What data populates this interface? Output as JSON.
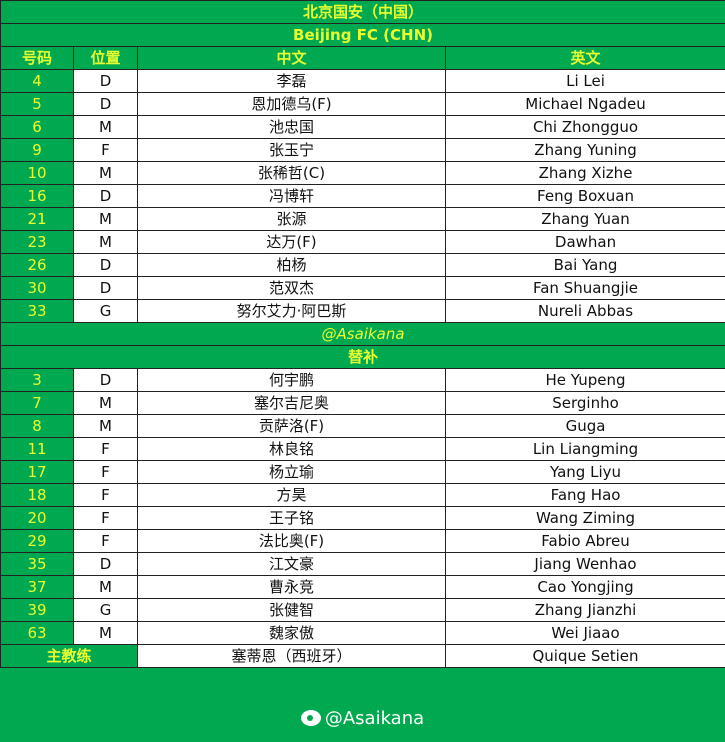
{
  "title_cn": "北京国安（中国）",
  "title_en": "Beijing FC (CHN)",
  "headers": [
    "号码",
    "位置",
    "中文",
    "英文"
  ],
  "starters": [
    [
      "4",
      "D",
      "李磊",
      "Li Lei"
    ],
    [
      "5",
      "D",
      "恩加德乌(F)",
      "Michael Ngadeu"
    ],
    [
      "6",
      "M",
      "池忠国",
      "Chi Zhongguo"
    ],
    [
      "9",
      "F",
      "张玉宁",
      "Zhang Yuning"
    ],
    [
      "10",
      "M",
      "张稀哲(C)",
      "Zhang Xizhe"
    ],
    [
      "16",
      "D",
      "冯博轩",
      "Feng Boxuan"
    ],
    [
      "21",
      "M",
      "张源",
      "Zhang Yuan"
    ],
    [
      "23",
      "M",
      "达万(F)",
      "Dawhan"
    ],
    [
      "26",
      "D",
      "柏杨",
      "Bai Yang"
    ],
    [
      "30",
      "D",
      "范双杰",
      "Fan Shuangjie"
    ],
    [
      "33",
      "G",
      "努尔艾力·阿巴斯",
      "Nureli Abbas"
    ]
  ],
  "watermark": "@Asaikana",
  "subs_label": "替补",
  "subs": [
    [
      "3",
      "D",
      "何宇鹏",
      "He Yupeng"
    ],
    [
      "7",
      "M",
      "塞尔吉尼奥",
      "Serginho"
    ],
    [
      "8",
      "M",
      "贡萨洛(F)",
      "Guga"
    ],
    [
      "11",
      "F",
      "林良铭",
      "Lin Liangming"
    ],
    [
      "17",
      "F",
      "杨立瑜",
      "Yang Liyu"
    ],
    [
      "18",
      "F",
      "方昊",
      "Fang Hao"
    ],
    [
      "20",
      "F",
      "王子铭",
      "Wang Ziming"
    ],
    [
      "29",
      "F",
      "法比奥(F)",
      "Fabio Abreu"
    ],
    [
      "35",
      "D",
      "江文豪",
      "Jiang Wenhao"
    ],
    [
      "37",
      "M",
      "曹永竞",
      "Cao Yongjing"
    ],
    [
      "39",
      "G",
      "张健智",
      "Zhang Jianzhi"
    ],
    [
      "63",
      "M",
      "魏家傲",
      "Wei Jiaao"
    ]
  ],
  "coach": {
    "label": "主教练",
    "cn": "塞蒂恩（西班牙）",
    "en": "Quique Setien"
  },
  "footer": {
    "icon": "weibo-icon",
    "text": "@Asaikana"
  }
}
